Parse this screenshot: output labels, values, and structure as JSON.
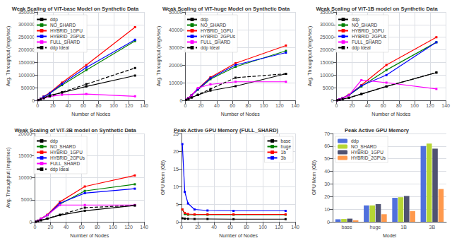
{
  "chart_data": [
    {
      "type": "line",
      "title": "Weak Scaling of ViT-base Model on Synthetic Data",
      "xlabel": "Number of Nodes",
      "ylabel": "Avg. Throughput (imgs/sec)",
      "x": [
        1,
        4,
        8,
        16,
        32,
        64,
        128
      ],
      "series": [
        {
          "name": "ddp",
          "color": "black",
          "values": [
            1000,
            5000,
            10000,
            20000,
            30000,
            55000,
            98000
          ]
        },
        {
          "name": "NO_SHARD",
          "color": "green",
          "values": [
            1500,
            6000,
            14000,
            28000,
            60000,
            120000,
            235000
          ]
        },
        {
          "name": "HYBRID_1GPU",
          "color": "red",
          "values": [
            1500,
            6500,
            15000,
            30000,
            70000,
            140000,
            290000
          ]
        },
        {
          "name": "HYBRID_2GPUs",
          "color": "blue",
          "values": [
            1500,
            6200,
            14000,
            28000,
            65000,
            130000,
            240000
          ]
        },
        {
          "name": "FULL_SHARD",
          "color": "magenta",
          "values": [
            1200,
            5000,
            8000,
            15000,
            22000,
            25000,
            16000
          ]
        },
        {
          "name": "ddp Ideal",
          "color": "black",
          "line_style": "dashed",
          "values": [
            1000,
            4000,
            8000,
            16000,
            32000,
            64000,
            128000
          ]
        }
      ],
      "marker": "square",
      "xlim": [
        0,
        140
      ],
      "xticks": [
        0,
        20,
        40,
        60,
        80,
        100,
        120,
        140
      ],
      "ylim": [
        0,
        350000
      ],
      "yticks": [
        0,
        50000,
        100000,
        150000,
        200000,
        250000,
        300000,
        350000
      ],
      "grid": true,
      "legend": "upper left"
    },
    {
      "type": "line",
      "title": "Weak Scaling of ViT-huge Model on Synthetic Data",
      "xlabel": "Number of Nodes",
      "ylabel": "Avg. Throughput (imgs/sec)",
      "x": [
        1,
        4,
        8,
        16,
        32,
        64,
        128
      ],
      "series": [
        {
          "name": "ddp",
          "color": "black",
          "values": [
            200,
            800,
            1600,
            3000,
            5500,
            8000,
            15000
          ]
        },
        {
          "name": "NO_SHARD",
          "color": "green",
          "values": [
            300,
            1200,
            2800,
            6000,
            12000,
            19000,
            28000
          ]
        },
        {
          "name": "HYBRID_1GPU",
          "color": "red",
          "values": [
            300,
            1300,
            3000,
            6500,
            13000,
            21000,
            31000
          ]
        },
        {
          "name": "HYBRID_2GPUs",
          "color": "blue",
          "values": [
            300,
            1200,
            2900,
            6200,
            12500,
            20000,
            27000
          ]
        },
        {
          "name": "FULL_SHARD",
          "color": "magenta",
          "values": [
            300,
            1200,
            2700,
            7000,
            9000,
            10500,
            10500
          ]
        },
        {
          "name": "ddp Ideal",
          "color": "black",
          "line_style": "dashed",
          "values": [
            200,
            800,
            1600,
            3200,
            6400,
            12800,
            15000
          ]
        }
      ],
      "marker": "square",
      "xlim": [
        0,
        140
      ],
      "xticks": [
        0,
        20,
        40,
        60,
        80,
        100,
        120,
        140
      ],
      "ylim": [
        0,
        50000
      ],
      "yticks": [
        0,
        10000,
        20000,
        30000,
        40000,
        50000
      ],
      "grid": true,
      "legend": "upper left"
    },
    {
      "type": "line",
      "title": "Weak Scaling of ViT-1B model on Synthetic Data",
      "xlabel": "Number of Nodes",
      "ylabel": "Avg. Throughput (imgs/sec)",
      "x": [
        1,
        4,
        8,
        16,
        32,
        64,
        128
      ],
      "series": [
        {
          "name": "ddp",
          "color": "black",
          "values": [
            50,
            200,
            500,
            1000,
            2500,
            5500,
            11000
          ]
        },
        {
          "name": "NO_SHARD",
          "color": "green",
          "values": [
            80,
            350,
            900,
            2000,
            5500,
            12000,
            23000
          ]
        },
        {
          "name": "HYBRID_1GPU",
          "color": "red",
          "values": [
            80,
            380,
            950,
            2200,
            6000,
            14000,
            25000
          ]
        },
        {
          "name": "HYBRID_2GPUs",
          "color": "blue",
          "values": [
            80,
            360,
            900,
            2100,
            5800,
            10000,
            23000
          ]
        },
        {
          "name": "FULL_SHARD",
          "color": "magenta",
          "values": [
            80,
            350,
            800,
            2000,
            8000,
            7000,
            4500
          ]
        },
        {
          "name": "ddp Ideal",
          "color": "black",
          "line_style": "dashed",
          "values": [
            50,
            200,
            500,
            1000,
            2500,
            5500,
            11000
          ]
        }
      ],
      "marker": "square",
      "xlim": [
        0,
        140
      ],
      "xticks": [
        0,
        20,
        40,
        60,
        80,
        100,
        120,
        140
      ],
      "ylim": [
        0,
        35000
      ],
      "yticks": [
        0,
        5000,
        10000,
        15000,
        20000,
        25000,
        30000,
        35000
      ],
      "grid": true,
      "legend": "upper left"
    },
    {
      "type": "line",
      "title": "Weak Scaling of ViT-3B model on Synthetic Data",
      "xlabel": "Number of Nodes",
      "ylabel": "Avg. Throughput (imgs/sec)",
      "x": [
        1,
        4,
        8,
        16,
        32,
        64,
        128
      ],
      "series": [
        {
          "name": "ddp",
          "color": "black",
          "values": [
            30,
            150,
            350,
            700,
            1500,
            2500,
            3700
          ]
        },
        {
          "name": "NO_SHARD",
          "color": "green",
          "values": [
            50,
            250,
            700,
            1500,
            4000,
            7000,
            8500
          ]
        },
        {
          "name": "HYBRID_1GPU",
          "color": "red",
          "values": [
            50,
            260,
            750,
            1600,
            4500,
            8000,
            10500
          ]
        },
        {
          "name": "HYBRID_2GPUs",
          "color": "blue",
          "values": [
            50,
            250,
            700,
            1500,
            4200,
            6500,
            7500
          ]
        },
        {
          "name": "FULL_SHARD",
          "color": "magenta",
          "values": [
            50,
            250,
            700,
            1500,
            3800,
            3800,
            3800
          ]
        },
        {
          "name": "ddp Ideal",
          "color": "black",
          "line_style": "dashed",
          "values": [
            30,
            150,
            350,
            750,
            1600,
            3200,
            3700
          ]
        }
      ],
      "marker": "square",
      "xlim": [
        0,
        140
      ],
      "xticks": [
        0,
        20,
        40,
        60,
        80,
        100,
        120,
        140
      ],
      "ylim": [
        0,
        20000
      ],
      "yticks": [
        0,
        5000,
        10000,
        15000,
        20000
      ],
      "grid": true,
      "legend": "upper left"
    },
    {
      "type": "line",
      "title": "Peak Active GPU Memory (FULL_SHARD)",
      "xlabel": "Number of Nodes",
      "ylabel": "GPU Mem (GB)",
      "x": [
        1,
        4,
        8,
        16,
        32,
        64,
        128
      ],
      "series": [
        {
          "name": "base",
          "color": "black",
          "values": [
            1.0,
            0.9,
            0.85,
            0.8,
            0.8,
            0.75,
            0.75
          ]
        },
        {
          "name": "huge",
          "color": "green",
          "values": [
            3.5,
            2.2,
            2.0,
            2.0,
            2.0,
            2.0,
            2.0
          ]
        },
        {
          "name": "1b",
          "color": "red",
          "values": [
            3.5,
            2.5,
            2.2,
            2.1,
            2.1,
            2.1,
            2.1
          ]
        },
        {
          "name": "3b",
          "color": "blue",
          "values": [
            22.0,
            8.5,
            5.2,
            3.5,
            3.2,
            3.1,
            3.1
          ]
        }
      ],
      "marker": "square",
      "xlim": [
        0,
        140
      ],
      "xticks": [
        0,
        20,
        40,
        60,
        80,
        100,
        120,
        140
      ],
      "ylim": [
        0,
        25
      ],
      "yticks": [
        0,
        5,
        10,
        15,
        20,
        25
      ],
      "grid": true,
      "legend": "upper right"
    },
    {
      "type": "bar",
      "title": "Peak Active GPU Memory",
      "xlabel": "Model",
      "ylabel": "GPU Mem (GB)",
      "categories": [
        "base",
        "huge",
        "1B",
        "3B"
      ],
      "series": [
        {
          "name": "ddp",
          "values": [
            2.0,
            13.0,
            19.0,
            60.0
          ]
        },
        {
          "name": "NO_SHARD",
          "values": [
            2.2,
            13.0,
            19.5,
            62.0
          ]
        },
        {
          "name": "HYBRID_1GPU",
          "values": [
            2.5,
            14.0,
            20.5,
            58.0
          ]
        },
        {
          "name": "HYBRID_2GPUs",
          "values": [
            1.2,
            6.0,
            8.5,
            26.0
          ]
        }
      ],
      "ylim": [
        0,
        70
      ],
      "yticks": [
        0,
        10,
        20,
        30,
        40,
        50,
        60,
        70
      ],
      "grid": true,
      "legend": "upper left"
    }
  ]
}
